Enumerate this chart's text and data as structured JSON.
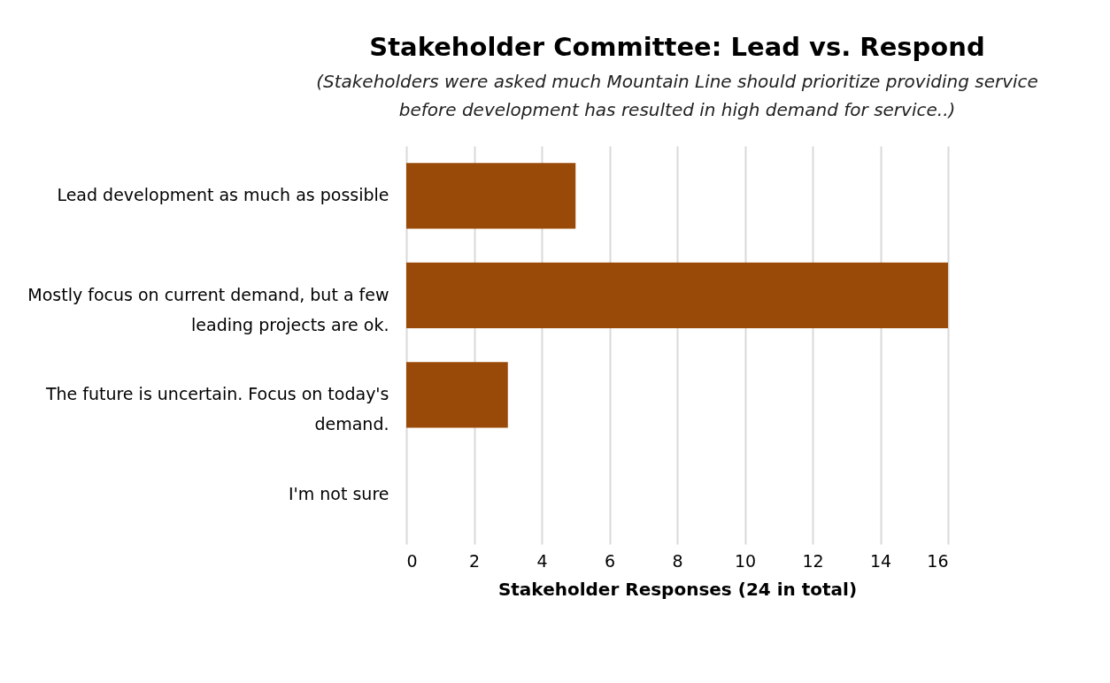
{
  "chart_data": {
    "type": "bar",
    "orientation": "horizontal",
    "title": "Stakeholder Committee: Lead vs. Respond",
    "subtitle": "(Stakeholders were asked much Mountain Line should prioritize providing service before development has resulted in high demand for service..)",
    "xlabel": "Stakeholder Responses (24 in total)",
    "categories": [
      "Lead development as much as possible",
      "Mostly focus on current demand, but a few leading projects are ok.",
      "The future is uncertain. Focus on today's demand.",
      "I'm not sure"
    ],
    "values": [
      5,
      16,
      3,
      0
    ],
    "color": "#9a4a08",
    "xlim": [
      0,
      16
    ],
    "xticks": [
      0,
      2,
      4,
      6,
      8,
      10,
      12,
      14,
      16
    ],
    "grid": "x"
  }
}
